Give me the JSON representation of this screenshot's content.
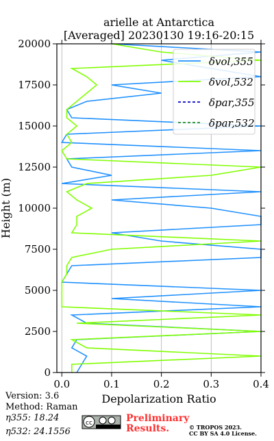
{
  "chart_data": {
    "type": "line",
    "title": "arielle at Antarctica",
    "subtitle": "[Averaged] 20230130 19:16-20:15",
    "xlabel": "Depolarization Ratio",
    "ylabel": "Height (m)",
    "xlim": [
      -0.01,
      0.4
    ],
    "xticks": [
      {
        "value": 0,
        "label": "0.0"
      },
      0.1,
      0.2,
      0.3,
      0.4
    ],
    "ylim": [
      0,
      20000
    ],
    "yticks": [
      0,
      2500,
      5000,
      7500,
      10000,
      12500,
      15000,
      17500,
      20000
    ],
    "grid": true,
    "legend": "upper right",
    "heights": [
      0,
      500,
      1000,
      1500,
      2000,
      2500,
      3000,
      3500,
      4000,
      4500,
      5000,
      5500,
      6000,
      6500,
      7000,
      7500,
      8000,
      8500,
      9000,
      9500,
      10000,
      10500,
      11000,
      11500,
      12000,
      12500,
      13000,
      13500,
      14000,
      14500,
      15000,
      15500,
      16000,
      16500,
      17000,
      17500,
      18000,
      18500,
      19000,
      19500,
      20000
    ],
    "series": [
      {
        "name": "δvol,355",
        "color": "#1e90ff",
        "dash": false,
        "values": [
          0.03,
          0.04,
          0.05,
          0.02,
          0.03,
          0.4,
          0.05,
          0.02,
          0.4,
          0.1,
          0.4,
          0.0,
          0.01,
          0.02,
          0.4,
          0.4,
          0.2,
          0.1,
          0.4,
          0.4,
          0.3,
          0.1,
          0.4,
          0.0,
          0.1,
          0.02,
          0.01,
          0.4,
          0.0,
          0.01,
          0.4,
          0.02,
          0.01,
          0.05,
          0.2,
          0.1,
          0.4,
          0.3,
          0.2,
          0.4,
          0.1
        ]
      },
      {
        "name": "δvol,532",
        "color": "#80ff00",
        "dash": false,
        "values": [
          0.02,
          0.02,
          0.4,
          0.05,
          0.02,
          0.4,
          0.03,
          0.4,
          0.0,
          0.0,
          0.0,
          0.0,
          0.01,
          0.01,
          0.02,
          0.1,
          0.4,
          0.02,
          0.03,
          0.03,
          0.06,
          0.03,
          0.01,
          0.05,
          0.3,
          0.4,
          0.01,
          0.0,
          0.02,
          0.01,
          0.03,
          0.01,
          0.01,
          0.03,
          0.05,
          0.07,
          0.05,
          0.02,
          0.4,
          0.2,
          0.1
        ]
      },
      {
        "name": "δpar,355",
        "color": "#0000cd",
        "dash": true,
        "values": [
          null,
          null,
          null,
          null,
          null,
          null,
          null,
          null,
          null,
          null,
          null,
          null,
          null,
          null,
          null,
          null,
          null,
          null,
          null,
          null,
          null,
          null,
          null,
          null,
          null,
          null,
          null,
          null,
          null,
          null,
          null,
          null,
          null,
          null,
          null,
          null,
          null,
          null,
          null,
          null,
          null
        ]
      },
      {
        "name": "δpar,532",
        "color": "#228b22",
        "dash": true,
        "values": [
          null,
          null,
          null,
          null,
          null,
          null,
          null,
          null,
          null,
          null,
          null,
          null,
          null,
          null,
          null,
          null,
          null,
          null,
          null,
          null,
          null,
          null,
          null,
          null,
          null,
          null,
          null,
          null,
          null,
          null,
          null,
          null,
          null,
          null,
          null,
          null,
          null,
          null,
          null,
          null,
          null
        ]
      }
    ]
  },
  "footer": {
    "version": "Version: 3.6",
    "method": "Method: Raman",
    "eta355": "η355:  18.24",
    "eta532": "η532: 24.1556",
    "preliminary": "Preliminary",
    "results": "Results.",
    "copyright": "© TROPOS 2023.",
    "license": "CC BY SA 4.0 License."
  }
}
